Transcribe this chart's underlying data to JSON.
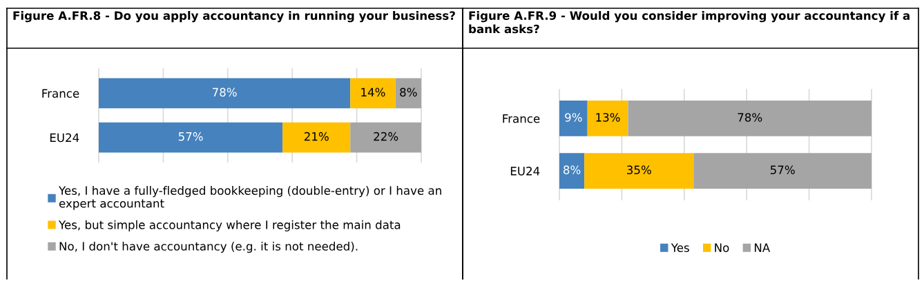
{
  "chart_data": [
    {
      "type": "bar",
      "orientation": "horizontal",
      "stacked": true,
      "title": "Figure A.FR.8 - Do you apply accountancy in running your business?",
      "categories": [
        "France",
        "EU24"
      ],
      "series": [
        {
          "name": "Yes, I have a fully-fledged bookkeeping (double-entry) or I have an expert accountant",
          "color": "#4682bd",
          "values": [
            78,
            57
          ],
          "value_labels": [
            "78%",
            "57%"
          ]
        },
        {
          "name": "Yes, but simple accountancy where I register the main data",
          "color": "#ffc000",
          "values": [
            14,
            21
          ],
          "value_labels": [
            "14%",
            "21%"
          ]
        },
        {
          "name": "No, I don't have accountancy (e.g. it is not needed).",
          "color": "#a5a5a5",
          "values": [
            8,
            22
          ],
          "value_labels": [
            "8%",
            "22%"
          ]
        }
      ],
      "xlim": [
        0,
        100
      ],
      "xticks": [
        {
          "value": 0,
          "label": null
        },
        {
          "value": 20,
          "label": null
        },
        {
          "value": 40,
          "label": null
        },
        {
          "value": 60,
          "label": null
        },
        {
          "value": 80,
          "label": null
        },
        {
          "value": 100,
          "label": null
        }
      ],
      "tick_labels": "y",
      "grid": "x",
      "legend": "bottom left"
    },
    {
      "type": "bar",
      "orientation": "horizontal",
      "stacked": true,
      "title": "Figure A.FR.9 - Would you consider improving your accountancy if a bank asks?",
      "categories": [
        "France",
        "EU24"
      ],
      "series": [
        {
          "name": "Yes",
          "color": "#4682bd",
          "values": [
            9,
            8
          ],
          "value_labels": [
            "9%",
            "8%"
          ]
        },
        {
          "name": "No",
          "color": "#ffc000",
          "values": [
            13,
            35
          ],
          "value_labels": [
            "13%",
            "35%"
          ]
        },
        {
          "name": "NA",
          "color": "#a5a5a5",
          "values": [
            78,
            57
          ],
          "value_labels": [
            "78%",
            "57%"
          ]
        }
      ],
      "xlim": [
        0,
        100
      ],
      "xticks": [
        {
          "value": 0,
          "label": null
        },
        {
          "value": 20,
          "label": null
        },
        {
          "value": 40,
          "label": null
        },
        {
          "value": 60,
          "label": null
        },
        {
          "value": 80,
          "label": null
        },
        {
          "value": 100,
          "label": null
        }
      ],
      "tick_labels": "y",
      "grid": "x",
      "legend": "bottom"
    }
  ]
}
